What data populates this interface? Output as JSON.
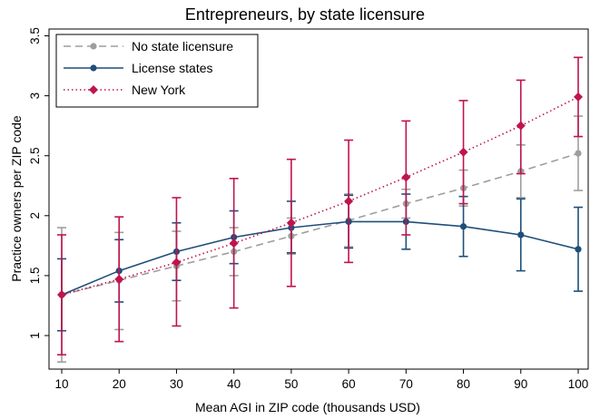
{
  "chart_data": {
    "type": "line",
    "title": "Entrepreneurs, by state licensure",
    "xlabel": "Mean AGI in ZIP code (thousands USD)",
    "ylabel": "Practice owners per ZIP code",
    "x": [
      10,
      20,
      30,
      40,
      50,
      60,
      70,
      80,
      90,
      100
    ],
    "xticks": [
      "10",
      "20",
      "30",
      "40",
      "50",
      "60",
      "70",
      "80",
      "90",
      "100"
    ],
    "yticks": [
      "1",
      "1.5",
      "2",
      "2.5",
      "3",
      "3.5"
    ],
    "xlim": [
      10,
      100
    ],
    "ylim": [
      0.75,
      3.5
    ],
    "grid": false,
    "legend_position": "top-left",
    "series": [
      {
        "name": "No state licensure",
        "color": "#9e9e9e",
        "line_style": "dashed",
        "marker": "circle",
        "values": [
          1.34,
          1.46,
          1.58,
          1.7,
          1.83,
          1.96,
          2.1,
          2.23,
          2.37,
          2.52
        ],
        "ci_low": [
          0.78,
          1.05,
          1.29,
          1.5,
          1.68,
          1.74,
          1.98,
          2.08,
          2.15,
          2.21
        ],
        "ci_high": [
          1.9,
          1.86,
          1.87,
          1.9,
          1.98,
          2.18,
          2.22,
          2.38,
          2.59,
          2.83
        ]
      },
      {
        "name": "License states",
        "color": "#1f4e79",
        "line_style": "solid",
        "marker": "circle",
        "values": [
          1.34,
          1.54,
          1.7,
          1.82,
          1.9,
          1.95,
          1.95,
          1.91,
          1.84,
          1.72
        ],
        "ci_low": [
          1.04,
          1.28,
          1.46,
          1.6,
          1.69,
          1.73,
          1.72,
          1.66,
          1.54,
          1.37
        ],
        "ci_high": [
          1.64,
          1.8,
          1.94,
          2.04,
          2.12,
          2.17,
          2.18,
          2.16,
          2.14,
          2.07
        ]
      },
      {
        "name": "New York",
        "color": "#c0144c",
        "line_style": "dotted",
        "marker": "diamond",
        "values": [
          1.34,
          1.47,
          1.61,
          1.77,
          1.94,
          2.12,
          2.32,
          2.53,
          2.75,
          2.99
        ],
        "ci_low": [
          0.84,
          0.95,
          1.08,
          1.23,
          1.41,
          1.61,
          1.84,
          2.1,
          2.35,
          2.66
        ],
        "ci_high": [
          1.84,
          1.99,
          2.15,
          2.31,
          2.47,
          2.63,
          2.79,
          2.96,
          3.13,
          3.32
        ]
      }
    ]
  }
}
